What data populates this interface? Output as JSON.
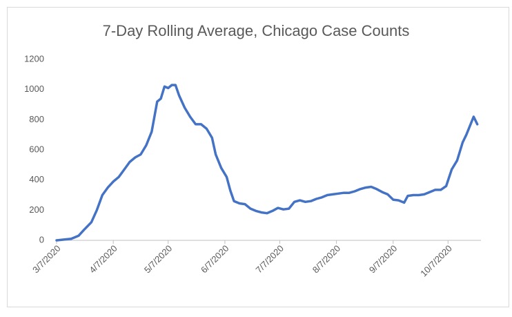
{
  "chart_data": {
    "type": "line",
    "title": "7-Day Rolling Average, Chicago Case Counts",
    "x": [
      "2020-03-07",
      "2020-03-11",
      "2020-03-15",
      "2020-03-19",
      "2020-03-22",
      "2020-03-26",
      "2020-03-29",
      "2020-04-01",
      "2020-04-04",
      "2020-04-07",
      "2020-04-10",
      "2020-04-13",
      "2020-04-16",
      "2020-04-19",
      "2020-04-22",
      "2020-04-25",
      "2020-04-28",
      "2020-05-01",
      "2020-05-03",
      "2020-05-05",
      "2020-05-07",
      "2020-05-09",
      "2020-05-11",
      "2020-05-13",
      "2020-05-16",
      "2020-05-19",
      "2020-05-22",
      "2020-05-25",
      "2020-05-28",
      "2020-05-31",
      "2020-06-02",
      "2020-06-05",
      "2020-06-08",
      "2020-06-10",
      "2020-06-12",
      "2020-06-15",
      "2020-06-18",
      "2020-06-21",
      "2020-06-24",
      "2020-06-27",
      "2020-06-30",
      "2020-07-03",
      "2020-07-06",
      "2020-07-09",
      "2020-07-12",
      "2020-07-15",
      "2020-07-18",
      "2020-07-21",
      "2020-07-24",
      "2020-07-27",
      "2020-07-30",
      "2020-08-02",
      "2020-08-05",
      "2020-08-08",
      "2020-08-11",
      "2020-08-14",
      "2020-08-17",
      "2020-08-20",
      "2020-08-23",
      "2020-08-26",
      "2020-08-29",
      "2020-09-01",
      "2020-09-04",
      "2020-09-07",
      "2020-09-10",
      "2020-09-13",
      "2020-09-15",
      "2020-09-18",
      "2020-09-21",
      "2020-09-24",
      "2020-09-27",
      "2020-09-30",
      "2020-10-03",
      "2020-10-06",
      "2020-10-09",
      "2020-10-12",
      "2020-10-15",
      "2020-10-17",
      "2020-10-19",
      "2020-10-21",
      "2020-10-23"
    ],
    "series": [
      {
        "color": "#4472c4",
        "values": [
          0,
          5,
          10,
          30,
          70,
          120,
          200,
          300,
          350,
          390,
          420,
          470,
          520,
          550,
          570,
          630,
          720,
          920,
          940,
          1020,
          1010,
          1030,
          1030,
          960,
          880,
          820,
          770,
          770,
          740,
          680,
          570,
          480,
          420,
          330,
          260,
          245,
          240,
          210,
          195,
          185,
          180,
          195,
          215,
          205,
          210,
          255,
          265,
          255,
          260,
          275,
          285,
          300,
          305,
          310,
          315,
          315,
          325,
          340,
          350,
          355,
          340,
          320,
          305,
          270,
          265,
          250,
          295,
          300,
          300,
          305,
          320,
          335,
          335,
          360,
          470,
          530,
          650,
          700,
          760,
          820,
          770
        ]
      }
    ],
    "xlim": [
      "2020-03-07",
      "2020-10-25"
    ],
    "xticks": [
      {
        "value": "2020-03-07",
        "label": "3/7/2020"
      },
      {
        "value": "2020-04-07",
        "label": "4/7/2020"
      },
      {
        "value": "2020-05-07",
        "label": "5/7/2020"
      },
      {
        "value": "2020-06-07",
        "label": "6/7/2020"
      },
      {
        "value": "2020-07-07",
        "label": "7/7/2020"
      },
      {
        "value": "2020-08-07",
        "label": "8/7/2020"
      },
      {
        "value": "2020-09-07",
        "label": "9/7/2020"
      },
      {
        "value": "2020-10-07",
        "label": "10/7/2020"
      }
    ],
    "ylim": [
      0,
      1200
    ],
    "yticks": [
      0,
      200,
      400,
      600,
      800,
      1000,
      1200
    ],
    "grid": false
  }
}
